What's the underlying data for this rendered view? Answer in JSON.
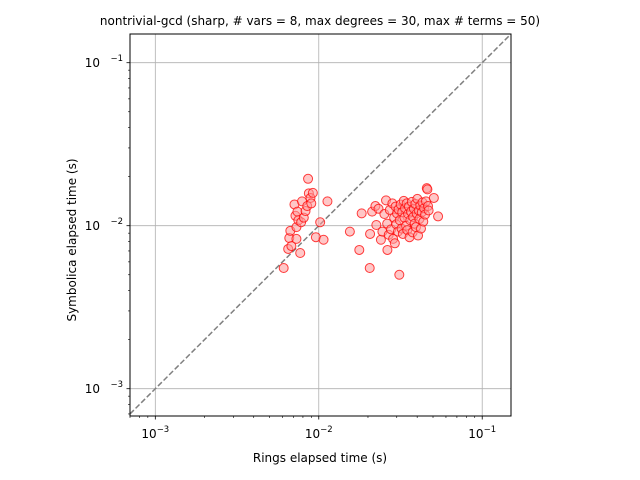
{
  "chart_data": {
    "type": "scatter",
    "title": "nontrivial-gcd (sharp, # vars = 8, max degrees = 30, max # terms = 50)",
    "xlabel": "Rings elapsed time (s)",
    "ylabel": "Symbolica elapsed time (s)",
    "xscale": "log",
    "yscale": "log",
    "xlim": [
      0.0007,
      0.15
    ],
    "ylim": [
      0.00068,
      0.15
    ],
    "grid": true,
    "x_ticks": [
      {
        "value": 0.001,
        "base": "10",
        "exp": "−3"
      },
      {
        "value": 0.01,
        "base": "10",
        "exp": "−2"
      },
      {
        "value": 0.1,
        "base": "10",
        "exp": "−1"
      }
    ],
    "y_ticks": [
      {
        "value": 0.001,
        "base": "10",
        "exp": "−3"
      },
      {
        "value": 0.01,
        "base": "10",
        "exp": "−2"
      },
      {
        "value": 0.1,
        "base": "10",
        "exp": "−1"
      }
    ],
    "reference_line": "y = x",
    "colors": {
      "marker_edge": "#ff0000",
      "marker_fill": "#ff9999",
      "reference_line": "#808080",
      "grid": "#b0b0b0"
    },
    "series": [
      {
        "points": [
          [
            0.0061,
            0.0055
          ],
          [
            0.0065,
            0.0072
          ],
          [
            0.0066,
            0.0084
          ],
          [
            0.0067,
            0.0093
          ],
          [
            0.0068,
            0.0075
          ],
          [
            0.0071,
            0.0135
          ],
          [
            0.0072,
            0.0115
          ],
          [
            0.0073,
            0.0098
          ],
          [
            0.0073,
            0.0083
          ],
          [
            0.0074,
            0.0122
          ],
          [
            0.0075,
            0.0108
          ],
          [
            0.0077,
            0.0068
          ],
          [
            0.0078,
            0.0105
          ],
          [
            0.0079,
            0.0141
          ],
          [
            0.0081,
            0.0112
          ],
          [
            0.0083,
            0.0123
          ],
          [
            0.0085,
            0.0132
          ],
          [
            0.0086,
            0.0194
          ],
          [
            0.0087,
            0.0158
          ],
          [
            0.0089,
            0.0148
          ],
          [
            0.009,
            0.0137
          ],
          [
            0.0092,
            0.0159
          ],
          [
            0.0096,
            0.0085
          ],
          [
            0.0102,
            0.0105
          ],
          [
            0.0107,
            0.0082
          ],
          [
            0.0113,
            0.0141
          ],
          [
            0.0155,
            0.0092
          ],
          [
            0.0177,
            0.0071
          ],
          [
            0.0183,
            0.0119
          ],
          [
            0.0205,
            0.0055
          ],
          [
            0.0206,
            0.0089
          ],
          [
            0.0212,
            0.0122
          ],
          [
            0.0222,
            0.0132
          ],
          [
            0.0225,
            0.0101
          ],
          [
            0.0232,
            0.0127
          ],
          [
            0.024,
            0.0082
          ],
          [
            0.0245,
            0.0092
          ],
          [
            0.0252,
            0.0118
          ],
          [
            0.0258,
            0.0143
          ],
          [
            0.0262,
            0.0103
          ],
          [
            0.0263,
            0.0071
          ],
          [
            0.0268,
            0.0088
          ],
          [
            0.0272,
            0.0125
          ],
          [
            0.0277,
            0.0095
          ],
          [
            0.0282,
            0.0137
          ],
          [
            0.0285,
            0.0083
          ],
          [
            0.0289,
            0.0112
          ],
          [
            0.0292,
            0.0078
          ],
          [
            0.0295,
            0.0131
          ],
          [
            0.0298,
            0.0102
          ],
          [
            0.0301,
            0.0119
          ],
          [
            0.0305,
            0.0092
          ],
          [
            0.0308,
            0.0126
          ],
          [
            0.0311,
            0.005
          ],
          [
            0.0313,
            0.0108
          ],
          [
            0.0317,
            0.0135
          ],
          [
            0.0321,
            0.0096
          ],
          [
            0.0324,
            0.0121
          ],
          [
            0.0327,
            0.0089
          ],
          [
            0.0331,
            0.0142
          ],
          [
            0.0334,
            0.0112
          ],
          [
            0.0337,
            0.0128
          ],
          [
            0.0342,
            0.01
          ],
          [
            0.0345,
            0.0137
          ],
          [
            0.0348,
            0.0094
          ],
          [
            0.0352,
            0.0118
          ],
          [
            0.0356,
            0.0131
          ],
          [
            0.0359,
            0.0085
          ],
          [
            0.0363,
            0.0108
          ],
          [
            0.0367,
            0.0122
          ],
          [
            0.0371,
            0.014
          ],
          [
            0.0375,
            0.0091
          ],
          [
            0.0378,
            0.0113
          ],
          [
            0.0382,
            0.0127
          ],
          [
            0.0386,
            0.0103
          ],
          [
            0.039,
            0.0136
          ],
          [
            0.0393,
            0.0098
          ],
          [
            0.0397,
            0.0119
          ],
          [
            0.0401,
            0.0146
          ],
          [
            0.0405,
            0.0087
          ],
          [
            0.0409,
            0.0124
          ],
          [
            0.0413,
            0.011
          ],
          [
            0.0418,
            0.0133
          ],
          [
            0.0422,
            0.0096
          ],
          [
            0.0427,
            0.0121
          ],
          [
            0.0431,
            0.0139
          ],
          [
            0.0436,
            0.0106
          ],
          [
            0.0441,
            0.0128
          ],
          [
            0.0447,
            0.0117
          ],
          [
            0.0453,
            0.0141
          ],
          [
            0.0458,
            0.017
          ],
          [
            0.0462,
            0.0167
          ],
          [
            0.0466,
            0.0132
          ],
          [
            0.047,
            0.0124
          ],
          [
            0.0506,
            0.0148
          ],
          [
            0.0537,
            0.0114
          ]
        ]
      }
    ]
  }
}
